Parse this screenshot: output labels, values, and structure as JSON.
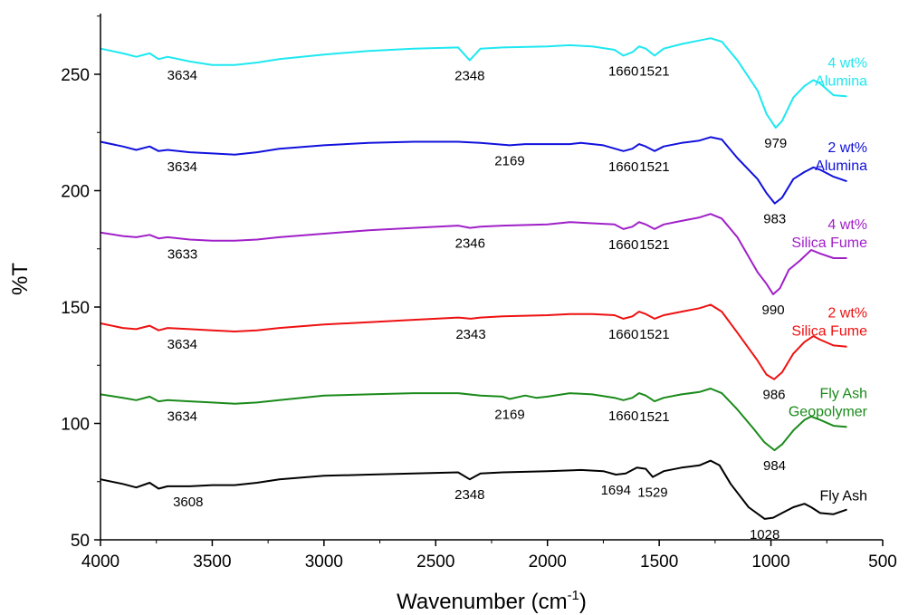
{
  "chart_data": {
    "type": "line",
    "title": "",
    "xlabel": "Wavenumber (cm",
    "xlabel_sup": "-1",
    "xlabel_end": ")",
    "ylabel": "%T",
    "xlim": [
      4000,
      500
    ],
    "ylim": [
      50,
      275
    ],
    "x_ticks": [
      4000,
      3500,
      3000,
      2500,
      2000,
      1500,
      1000,
      500
    ],
    "y_ticks": [
      50,
      100,
      150,
      200,
      250
    ],
    "series": [
      {
        "name": "Fly Ash",
        "legend_lines": [
          "Fly Ash"
        ],
        "color": "#000000",
        "points": [
          [
            4000,
            76
          ],
          [
            3900,
            74
          ],
          [
            3840,
            72.5
          ],
          [
            3780,
            74.5
          ],
          [
            3740,
            72
          ],
          [
            3700,
            73
          ],
          [
            3600,
            73
          ],
          [
            3500,
            73.5
          ],
          [
            3400,
            73.5
          ],
          [
            3300,
            74.5
          ],
          [
            3200,
            76
          ],
          [
            3000,
            77.5
          ],
          [
            2800,
            78
          ],
          [
            2600,
            78.5
          ],
          [
            2400,
            79
          ],
          [
            2348,
            76
          ],
          [
            2300,
            78.5
          ],
          [
            2200,
            79
          ],
          [
            2000,
            79.5
          ],
          [
            1850,
            80
          ],
          [
            1750,
            79.5
          ],
          [
            1694,
            78
          ],
          [
            1650,
            78.5
          ],
          [
            1600,
            81
          ],
          [
            1560,
            80.5
          ],
          [
            1529,
            77
          ],
          [
            1480,
            79.5
          ],
          [
            1400,
            81
          ],
          [
            1320,
            82
          ],
          [
            1270,
            84
          ],
          [
            1230,
            82
          ],
          [
            1180,
            74
          ],
          [
            1100,
            64
          ],
          [
            1028,
            59
          ],
          [
            990,
            59.5
          ],
          [
            950,
            61.5
          ],
          [
            900,
            64
          ],
          [
            850,
            65.5
          ],
          [
            820,
            64
          ],
          [
            780,
            61.5
          ],
          [
            720,
            61
          ],
          [
            660,
            63
          ]
        ],
        "peaks": [
          [
            3608,
            "3608"
          ],
          [
            2348,
            "2348"
          ],
          [
            1694,
            "1694"
          ],
          [
            1529,
            "1529"
          ],
          [
            1028,
            "1028"
          ]
        ]
      },
      {
        "name": "Fly Ash Geopolymer",
        "legend_lines": [
          "Fly Ash",
          "Geopolymer"
        ],
        "color": "#1a8a1a",
        "points": [
          [
            4000,
            112.5
          ],
          [
            3900,
            111
          ],
          [
            3840,
            110
          ],
          [
            3780,
            111.5
          ],
          [
            3740,
            109.5
          ],
          [
            3700,
            110
          ],
          [
            3600,
            109.5
          ],
          [
            3500,
            109
          ],
          [
            3400,
            108.5
          ],
          [
            3300,
            109
          ],
          [
            3200,
            110
          ],
          [
            3000,
            112
          ],
          [
            2800,
            112.5
          ],
          [
            2600,
            113
          ],
          [
            2400,
            113
          ],
          [
            2300,
            112
          ],
          [
            2200,
            111.5
          ],
          [
            2169,
            110.5
          ],
          [
            2100,
            112
          ],
          [
            2050,
            111
          ],
          [
            2000,
            111.5
          ],
          [
            1900,
            113
          ],
          [
            1800,
            112.5
          ],
          [
            1700,
            111
          ],
          [
            1660,
            110
          ],
          [
            1620,
            111
          ],
          [
            1590,
            113
          ],
          [
            1560,
            112
          ],
          [
            1521,
            109.5
          ],
          [
            1480,
            111
          ],
          [
            1400,
            112.5
          ],
          [
            1320,
            113.5
          ],
          [
            1270,
            115
          ],
          [
            1220,
            113
          ],
          [
            1150,
            106
          ],
          [
            1080,
            98
          ],
          [
            1030,
            92
          ],
          [
            984,
            88.5
          ],
          [
            950,
            91
          ],
          [
            900,
            97
          ],
          [
            850,
            101.5
          ],
          [
            820,
            103
          ],
          [
            780,
            101.5
          ],
          [
            720,
            99
          ],
          [
            660,
            98.5
          ]
        ],
        "peaks": [
          [
            3634,
            "3634"
          ],
          [
            2169,
            "2169"
          ],
          [
            1660,
            "1660"
          ],
          [
            1521,
            "1521"
          ],
          [
            984,
            "984"
          ]
        ]
      },
      {
        "name": "2 wt% Silica Fume",
        "legend_lines": [
          "2 wt%",
          "Silica Fume"
        ],
        "color": "#ee1111",
        "points": [
          [
            4000,
            143
          ],
          [
            3900,
            141
          ],
          [
            3840,
            140.5
          ],
          [
            3780,
            142
          ],
          [
            3740,
            140
          ],
          [
            3700,
            141
          ],
          [
            3600,
            140.5
          ],
          [
            3500,
            140
          ],
          [
            3400,
            139.5
          ],
          [
            3300,
            140
          ],
          [
            3200,
            141
          ],
          [
            3000,
            142.5
          ],
          [
            2800,
            143.5
          ],
          [
            2600,
            144.5
          ],
          [
            2400,
            145.5
          ],
          [
            2343,
            145
          ],
          [
            2300,
            145.5
          ],
          [
            2200,
            146
          ],
          [
            2000,
            146.5
          ],
          [
            1900,
            147
          ],
          [
            1800,
            147
          ],
          [
            1700,
            146.5
          ],
          [
            1660,
            145
          ],
          [
            1620,
            146
          ],
          [
            1590,
            148
          ],
          [
            1560,
            147
          ],
          [
            1521,
            145
          ],
          [
            1480,
            146.5
          ],
          [
            1400,
            148
          ],
          [
            1320,
            149.5
          ],
          [
            1270,
            151
          ],
          [
            1220,
            148
          ],
          [
            1150,
            139
          ],
          [
            1060,
            127
          ],
          [
            1020,
            121
          ],
          [
            986,
            119
          ],
          [
            950,
            122
          ],
          [
            900,
            130
          ],
          [
            850,
            135
          ],
          [
            810,
            137.5
          ],
          [
            780,
            136
          ],
          [
            720,
            133.5
          ],
          [
            660,
            133
          ]
        ],
        "peaks": [
          [
            3634,
            "3634"
          ],
          [
            2343,
            "2343"
          ],
          [
            1660,
            "1660"
          ],
          [
            1521,
            "1521"
          ],
          [
            986,
            "986"
          ]
        ]
      },
      {
        "name": "4 wt% Silica Fume",
        "legend_lines": [
          "4 wt%",
          "Silica Fume"
        ],
        "color": "#a020c8",
        "points": [
          [
            4000,
            182
          ],
          [
            3900,
            180.5
          ],
          [
            3840,
            180
          ],
          [
            3780,
            181
          ],
          [
            3740,
            179.5
          ],
          [
            3700,
            180
          ],
          [
            3600,
            179
          ],
          [
            3500,
            178.5
          ],
          [
            3400,
            178.5
          ],
          [
            3300,
            179
          ],
          [
            3200,
            180
          ],
          [
            3000,
            181.5
          ],
          [
            2800,
            183
          ],
          [
            2600,
            184
          ],
          [
            2400,
            185
          ],
          [
            2346,
            184
          ],
          [
            2300,
            184.5
          ],
          [
            2200,
            185
          ],
          [
            2000,
            185.5
          ],
          [
            1900,
            186.5
          ],
          [
            1800,
            186
          ],
          [
            1700,
            185.5
          ],
          [
            1660,
            183.5
          ],
          [
            1620,
            184.5
          ],
          [
            1590,
            186.5
          ],
          [
            1560,
            185.5
          ],
          [
            1521,
            183.5
          ],
          [
            1480,
            185.5
          ],
          [
            1400,
            187
          ],
          [
            1320,
            188.5
          ],
          [
            1270,
            190
          ],
          [
            1220,
            188
          ],
          [
            1150,
            180
          ],
          [
            1060,
            165
          ],
          [
            1020,
            160
          ],
          [
            990,
            155.5
          ],
          [
            960,
            158
          ],
          [
            920,
            166
          ],
          [
            870,
            170
          ],
          [
            820,
            174.5
          ],
          [
            780,
            173
          ],
          [
            720,
            171
          ],
          [
            660,
            171
          ]
        ],
        "peaks": [
          [
            3633,
            "3633"
          ],
          [
            2346,
            "2346"
          ],
          [
            1660,
            "1660"
          ],
          [
            1521,
            "1521"
          ],
          [
            990,
            "990"
          ]
        ]
      },
      {
        "name": "2 wt% Alumina",
        "legend_lines": [
          "2 wt%",
          "Alumina"
        ],
        "color": "#1111dd",
        "points": [
          [
            4000,
            221
          ],
          [
            3900,
            219
          ],
          [
            3840,
            217.5
          ],
          [
            3780,
            219
          ],
          [
            3740,
            217
          ],
          [
            3700,
            217.5
          ],
          [
            3600,
            216.5
          ],
          [
            3500,
            216
          ],
          [
            3400,
            215.5
          ],
          [
            3300,
            216.5
          ],
          [
            3200,
            218
          ],
          [
            3000,
            219.5
          ],
          [
            2800,
            220.5
          ],
          [
            2600,
            221
          ],
          [
            2400,
            221
          ],
          [
            2300,
            220.5
          ],
          [
            2169,
            219.5
          ],
          [
            2100,
            220
          ],
          [
            2000,
            220
          ],
          [
            1900,
            220
          ],
          [
            1850,
            220.5
          ],
          [
            1750,
            219.5
          ],
          [
            1660,
            217
          ],
          [
            1620,
            218
          ],
          [
            1590,
            220
          ],
          [
            1560,
            219
          ],
          [
            1521,
            217
          ],
          [
            1480,
            219
          ],
          [
            1400,
            220.5
          ],
          [
            1320,
            221.5
          ],
          [
            1270,
            223
          ],
          [
            1220,
            222
          ],
          [
            1150,
            214
          ],
          [
            1060,
            205
          ],
          [
            1020,
            199
          ],
          [
            983,
            194.5
          ],
          [
            950,
            197
          ],
          [
            900,
            205
          ],
          [
            850,
            208
          ],
          [
            810,
            210
          ],
          [
            780,
            209
          ],
          [
            720,
            206
          ],
          [
            660,
            204
          ]
        ],
        "peaks": [
          [
            3634,
            "3634"
          ],
          [
            2169,
            "2169"
          ],
          [
            1660,
            "1660"
          ],
          [
            1521,
            "1521"
          ],
          [
            983,
            "983"
          ]
        ]
      },
      {
        "name": "4 wt% Alumina",
        "legend_lines": [
          "4 wt%",
          "Alumina"
        ],
        "color": "#1ee8f0",
        "points": [
          [
            4000,
            261
          ],
          [
            3900,
            259
          ],
          [
            3840,
            257.5
          ],
          [
            3780,
            259
          ],
          [
            3740,
            256.5
          ],
          [
            3700,
            257.5
          ],
          [
            3600,
            255.5
          ],
          [
            3500,
            254
          ],
          [
            3400,
            254
          ],
          [
            3300,
            255
          ],
          [
            3200,
            256.5
          ],
          [
            3000,
            258.5
          ],
          [
            2800,
            260
          ],
          [
            2600,
            261
          ],
          [
            2400,
            261.5
          ],
          [
            2348,
            256
          ],
          [
            2300,
            261
          ],
          [
            2200,
            261.5
          ],
          [
            2000,
            262
          ],
          [
            1900,
            262.5
          ],
          [
            1800,
            262
          ],
          [
            1700,
            260.5
          ],
          [
            1660,
            258
          ],
          [
            1620,
            259.5
          ],
          [
            1590,
            262
          ],
          [
            1560,
            261
          ],
          [
            1521,
            258
          ],
          [
            1480,
            261
          ],
          [
            1400,
            263
          ],
          [
            1320,
            264.5
          ],
          [
            1270,
            265.5
          ],
          [
            1220,
            264
          ],
          [
            1150,
            256
          ],
          [
            1060,
            243
          ],
          [
            1020,
            233
          ],
          [
            979,
            227
          ],
          [
            950,
            230
          ],
          [
            900,
            240
          ],
          [
            850,
            245
          ],
          [
            810,
            247.5
          ],
          [
            780,
            246
          ],
          [
            720,
            241
          ],
          [
            660,
            240.5
          ]
        ],
        "peaks": [
          [
            3634,
            "3634"
          ],
          [
            2348,
            "2348"
          ],
          [
            1660,
            "1660"
          ],
          [
            1521,
            "1521"
          ],
          [
            979,
            "979"
          ]
        ]
      }
    ]
  }
}
